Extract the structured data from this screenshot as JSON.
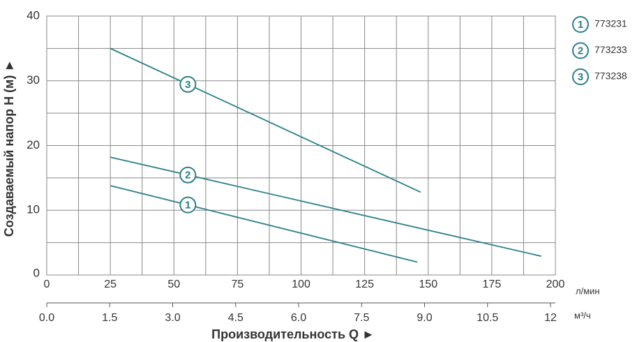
{
  "chart_data": {
    "type": "line",
    "x_unit": "л/мин",
    "x2_unit": "м³/ч",
    "xlabel": "Производительность Q ►",
    "ylabel": "Создаваемый напор H (м) ►",
    "xlim": [
      0,
      200
    ],
    "xticks": [
      0,
      25,
      50,
      75,
      100,
      125,
      150,
      175,
      200
    ],
    "x_minor_ticks": [
      12.5,
      37.5,
      62.5,
      87.5,
      112.5,
      137.5,
      162.5,
      187.5
    ],
    "x2lim": [
      0,
      12
    ],
    "x2ticks": [
      {
        "value": 0,
        "label": "0.0"
      },
      1.5,
      {
        "value": 3,
        "label": "3.0"
      },
      4.5,
      {
        "value": 6,
        "label": "6.0"
      },
      7.5,
      {
        "value": 9,
        "label": "9.0"
      },
      10.5,
      12
    ],
    "ylim": [
      0,
      40
    ],
    "yticks": [
      0,
      10,
      20,
      30,
      40
    ],
    "y_minor_ticks": [
      5,
      15,
      25,
      35
    ],
    "grid": true,
    "series": [
      {
        "name": "773231",
        "label": "1",
        "color": "#2a7f8a",
        "x": [
          25,
          145.7
        ],
        "values": [
          13.8,
          2.0
        ]
      },
      {
        "name": "773233",
        "label": "2",
        "color": "#2a7f8a",
        "x": [
          25,
          194.5
        ],
        "values": [
          18.2,
          2.9
        ]
      },
      {
        "name": "773238",
        "label": "3",
        "color": "#2a7f8a",
        "x": [
          25,
          147
        ],
        "values": [
          35,
          12.8
        ]
      }
    ]
  }
}
